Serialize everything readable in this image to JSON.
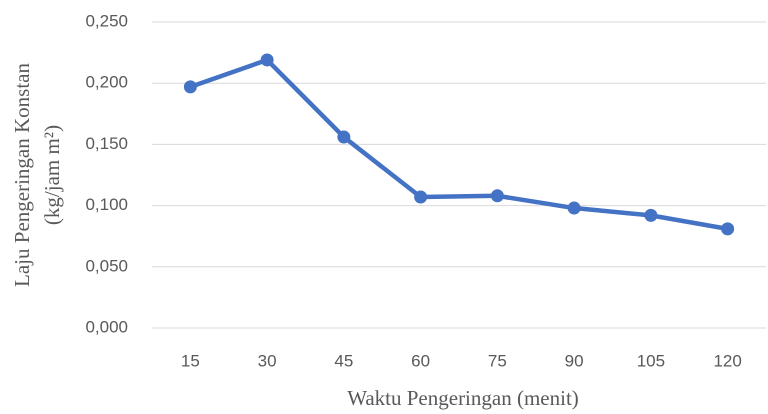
{
  "chart_data": {
    "type": "line",
    "xlabel": "Waktu Pengeringan (menit)",
    "ylabel": [
      "Laju Pengeringan Konstan",
      "(kg/jam m²)"
    ],
    "categories": [
      "15",
      "30",
      "45",
      "60",
      "75",
      "90",
      "105",
      "120"
    ],
    "series": [
      {
        "color": "#4472c4",
        "values": [
          0.197,
          0.219,
          0.156,
          0.107,
          0.108,
          0.098,
          0.092,
          0.081
        ]
      }
    ],
    "ylim": [
      0,
      0.25
    ],
    "yticks": [
      {
        "value": 0,
        "label": "0,000"
      },
      {
        "value": 0.05,
        "label": "0,050"
      },
      {
        "value": 0.1,
        "label": "0,100"
      },
      {
        "value": 0.15,
        "label": "0,150"
      },
      {
        "value": 0.2,
        "label": "0,200"
      },
      {
        "value": 0.25,
        "label": "0,250"
      }
    ],
    "grid": true
  }
}
